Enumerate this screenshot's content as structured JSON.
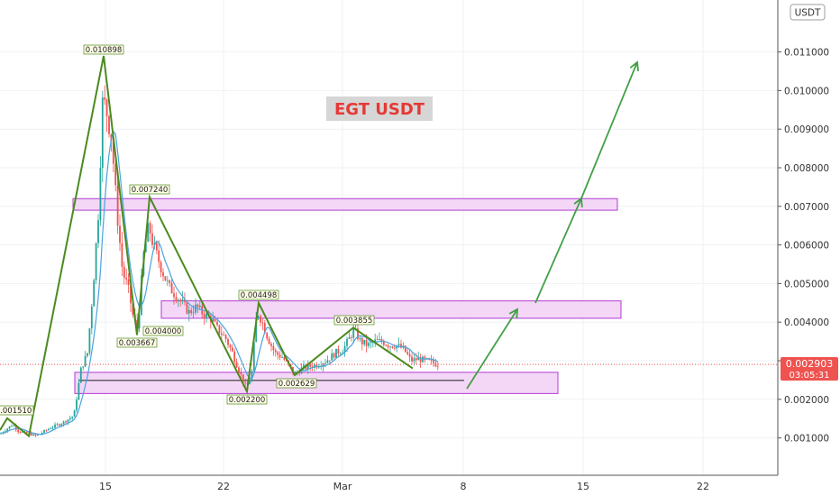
{
  "chart_data": {
    "type": "candlestick",
    "title": "EGT USDT",
    "currency_label": "USDT",
    "x_axis": {
      "ticks": [
        "15",
        "22",
        "Mar",
        "8",
        "15",
        "22"
      ]
    },
    "y_axis": {
      "ticks": [
        "0.011000",
        "0.010000",
        "0.009000",
        "0.008000",
        "0.007000",
        "0.006000",
        "0.005000",
        "0.004000",
        "0.003000",
        "0.002000",
        "0.001000"
      ],
      "ticks_values": [
        0.011,
        0.01,
        0.009,
        0.008,
        0.007,
        0.006,
        0.005,
        0.004,
        0.003,
        0.002,
        0.001
      ],
      "ylim": [
        0.0,
        0.0125
      ]
    },
    "last_price": {
      "value": 0.002903,
      "label": "0.002903",
      "countdown": "03:05:31",
      "color": "#ef5350"
    },
    "zigzag_labels": [
      {
        "value": 0.00151,
        "label": "0.001510"
      },
      {
        "value": 0.010898,
        "label": "0.010898"
      },
      {
        "value": 0.00724,
        "label": "0.007240"
      },
      {
        "value": 0.003667,
        "label": "0.003667"
      },
      {
        "value": 0.004,
        "label": "0.004000"
      },
      {
        "value": 0.004498,
        "label": "0.004498"
      },
      {
        "value": 0.0022,
        "label": "0.002200"
      },
      {
        "value": 0.002629,
        "label": "0.002629"
      },
      {
        "value": 0.003855,
        "label": "0.003855"
      }
    ],
    "zones": [
      {
        "name": "resistance-high",
        "from": 0.0069,
        "to": 0.0072
      },
      {
        "name": "resistance-mid",
        "from": 0.0041,
        "to": 0.00455
      },
      {
        "name": "support",
        "from": 0.00215,
        "to": 0.0027
      }
    ],
    "colors": {
      "up": "#26a69a",
      "down": "#ef5350",
      "zigzag": "#4c8a1f",
      "ma": "#4aa3df",
      "zone_fill": "#f4d7f7",
      "zone_stroke": "#b13bd1",
      "forecast": "#43a047",
      "title_bg": "#d6d6d6",
      "title_text": "#e53935"
    }
  }
}
